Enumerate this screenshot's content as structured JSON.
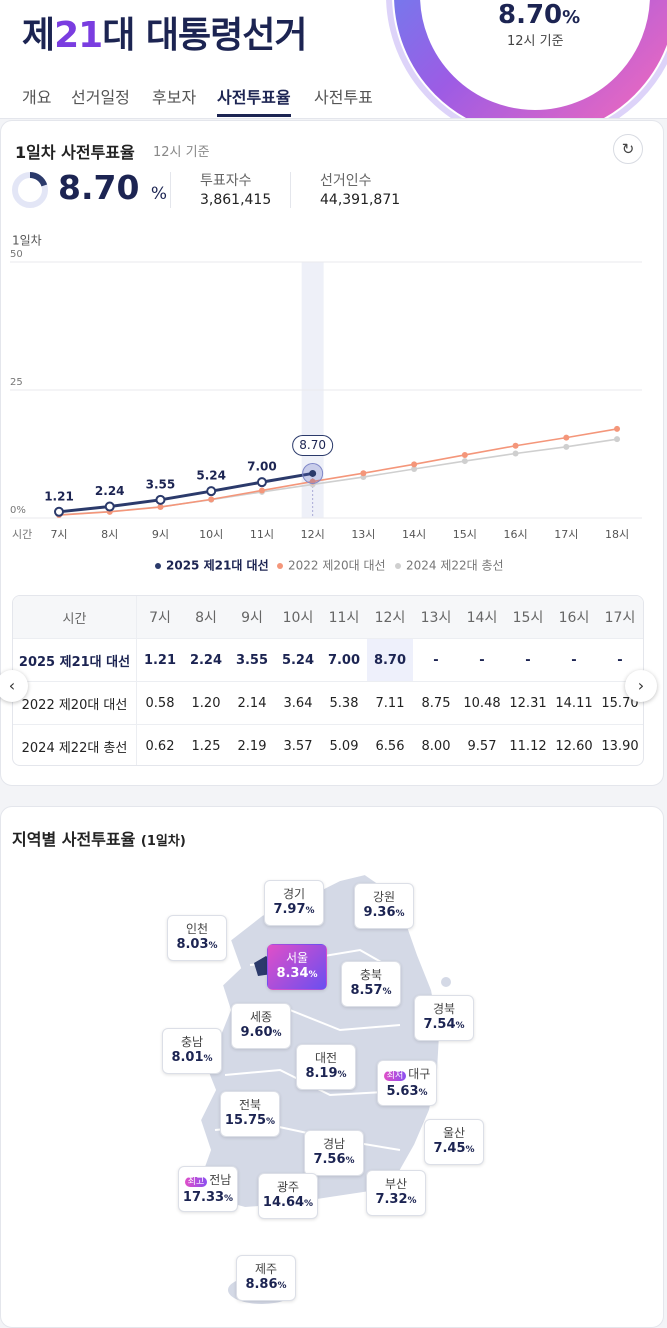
{
  "header": {
    "title": [
      "제",
      "21",
      "대 대통령선거"
    ],
    "rate": "8.70",
    "unit": "%",
    "basis": "12시 기준"
  },
  "nav": [
    "개요",
    "선거일정",
    "후보자",
    "사전투표율",
    "사전투표"
  ],
  "summary": {
    "title": "1일차 사전투표율",
    "basis": "12시 기준",
    "rate": "8.70",
    "unit": "%",
    "voters_label": "투표자수",
    "voters": "3,861,415",
    "electorate_label": "선거인수",
    "electorate": "44,391,871"
  },
  "chart_data": {
    "type": "line",
    "label": "1일차",
    "x_label": "시간",
    "x": [
      "7시",
      "8시",
      "9시",
      "10시",
      "11시",
      "12시",
      "13시",
      "14시",
      "15시",
      "16시",
      "17시",
      "18시"
    ],
    "series": [
      {
        "name": "2025 제21대 대선",
        "color": "#2b3a6b",
        "values": [
          1.21,
          2.24,
          3.55,
          5.24,
          7.0,
          8.7,
          null,
          null,
          null,
          null,
          null,
          null
        ],
        "value_labels": [
          "1.21",
          "2.24",
          "3.55",
          "5.24",
          "7.00",
          "8.70",
          null,
          null,
          null,
          null,
          null,
          null
        ]
      },
      {
        "name": "2022 제20대 대선",
        "color": "#f4967a",
        "values": [
          0.58,
          1.2,
          2.14,
          3.64,
          5.38,
          7.11,
          8.75,
          10.48,
          12.31,
          14.11,
          15.7,
          17.4
        ]
      },
      {
        "name": "2024 제22대 총선",
        "color": "#cfcfcf",
        "values": [
          0.62,
          1.25,
          2.19,
          3.57,
          5.09,
          6.56,
          8.0,
          9.57,
          11.12,
          12.6,
          13.9,
          15.4
        ]
      }
    ],
    "ylim": [
      0,
      50
    ],
    "yticks": [
      {
        "value": 0,
        "label": "0%"
      },
      25,
      50
    ],
    "grid": true,
    "legend": "bottom"
  },
  "table": {
    "header": "시간",
    "rows": [
      [
        "1.21",
        "2.24",
        "3.55",
        "5.24",
        "7.00",
        "8.70",
        "-",
        "-",
        "-",
        "-",
        "-"
      ],
      [
        "0.58",
        "1.20",
        "2.14",
        "3.64",
        "5.38",
        "7.11",
        "8.75",
        "10.48",
        "12.31",
        "14.11",
        "15.70"
      ],
      [
        "0.62",
        "1.25",
        "2.19",
        "3.57",
        "5.09",
        "6.56",
        "8.00",
        "9.57",
        "11.12",
        "12.60",
        "13.90"
      ]
    ]
  },
  "regions": {
    "title": "지역별 사전투표율",
    "subtitle": "(1일차)",
    "unit": "%",
    "items": [
      {
        "name": "경기",
        "value": "7.97"
      },
      {
        "name": "강원",
        "value": "9.36"
      },
      {
        "name": "인천",
        "value": "8.03"
      },
      {
        "name": "서울",
        "value": "8.34"
      },
      {
        "name": "충북",
        "value": "8.57"
      },
      {
        "name": "경북",
        "value": "7.54"
      },
      {
        "name": "세종",
        "value": "9.60"
      },
      {
        "name": "충남",
        "value": "8.01"
      },
      {
        "name": "대전",
        "value": "8.19"
      },
      {
        "name": "대구",
        "value": "5.63",
        "badge": "최저"
      },
      {
        "name": "전북",
        "value": "15.75"
      },
      {
        "name": "울산",
        "value": "7.45"
      },
      {
        "name": "경남",
        "value": "7.56"
      },
      {
        "name": "전남",
        "value": "17.33",
        "badge": "최고"
      },
      {
        "name": "광주",
        "value": "14.64"
      },
      {
        "name": "부산",
        "value": "7.32"
      },
      {
        "name": "제주",
        "value": "8.86"
      }
    ]
  }
}
